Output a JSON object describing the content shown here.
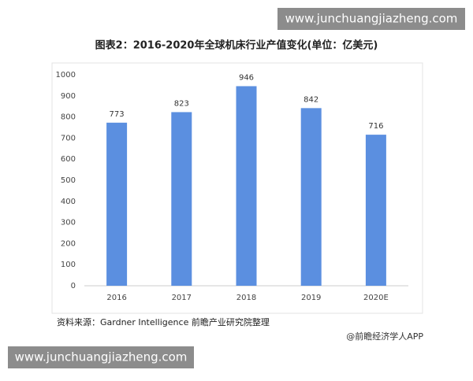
{
  "chart_data": {
    "type": "bar",
    "title": "图表2：2016-2020年全球机床行业产值变化(单位：亿美元)",
    "categories": [
      "2016",
      "2017",
      "2018",
      "2019",
      "2020E"
    ],
    "values": [
      773,
      823,
      946,
      842,
      716
    ],
    "color": "#5b8fe0",
    "ylim": [
      0,
      1000
    ],
    "yticks": [
      0,
      100,
      200,
      300,
      400,
      500,
      600,
      700,
      800,
      900,
      1000
    ],
    "grid": false,
    "source": "资料来源：Gardner Intelligence 前瞻产业研究院整理",
    "credit": "@前瞻经济学人APP"
  },
  "watermarks": [
    "www.junchuangjiazheng.com",
    "www.junchuangjiazheng.com"
  ]
}
